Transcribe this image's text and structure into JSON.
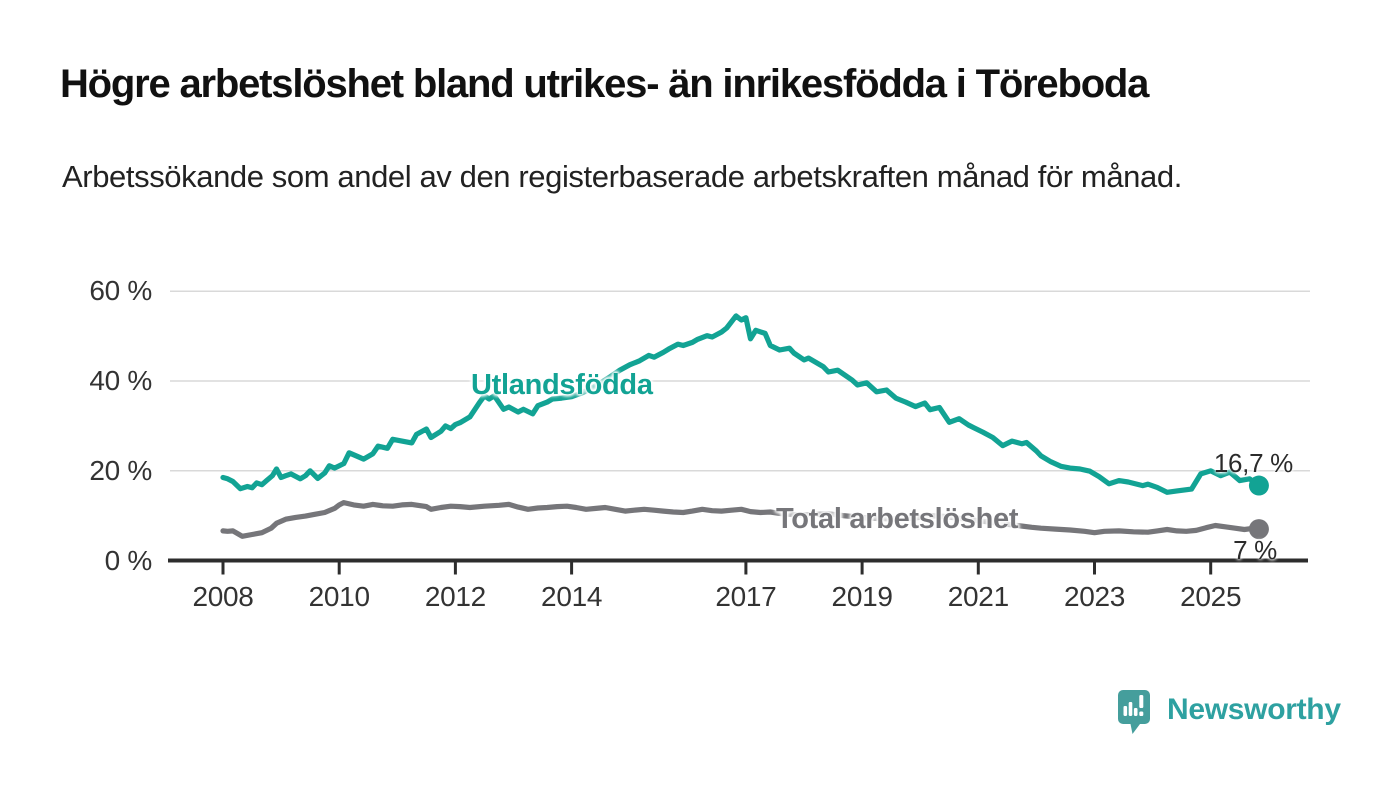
{
  "header": {
    "title": "Högre arbetslöshet bland utrikes- än inrikesfödda i Töreboda",
    "subtitle": "Arbetssökande som andel av den registerbaserade arbetskraften månad för månad."
  },
  "footer": {
    "brand": "Newsworthy",
    "logo_icon": "bar-chart-speech-bubble-icon"
  },
  "colors": {
    "teal_line": "#12a394",
    "gray_line": "#76767a",
    "axis": "#2d2d2d",
    "grid": "#d9d9d9",
    "tick_text": "#333333",
    "logo_teal": "#459e9c"
  },
  "chart_data": {
    "type": "line",
    "title": "Högre arbetslöshet bland utrikes- än inrikesfödda i Töreboda",
    "subtitle": "Arbetssökande som andel av den registerbaserade arbetskraften månad för månad.",
    "xlabel": "",
    "ylabel": "",
    "legend_position": "inline-labels-on-lines",
    "grid": "horizontal",
    "x_axis": {
      "domain": [
        2008,
        2025.83
      ],
      "ticks": [
        2008,
        2010,
        2012,
        2014,
        2017,
        2019,
        2021,
        2023,
        2025
      ],
      "tick_labels": [
        "2008",
        "2010",
        "2012",
        "2014",
        "2017",
        "2019",
        "2021",
        "2023",
        "2025"
      ]
    },
    "y_axis": {
      "lim": [
        0,
        62
      ],
      "ticks": [
        0,
        20,
        40,
        60
      ],
      "tick_labels": [
        "0 %",
        "20 %",
        "40 %",
        "60 %"
      ]
    },
    "series": [
      {
        "name": "Utlandsfödda",
        "color": "#12a394",
        "end_label": "16,7 %",
        "end_value": 16.7,
        "points": [
          [
            2008.0,
            18.5
          ],
          [
            2008.08,
            18.2
          ],
          [
            2008.17,
            17.6
          ],
          [
            2008.3,
            16.0
          ],
          [
            2008.42,
            16.5
          ],
          [
            2008.5,
            16.2
          ],
          [
            2008.58,
            17.3
          ],
          [
            2008.67,
            16.9
          ],
          [
            2008.75,
            17.8
          ],
          [
            2008.85,
            18.9
          ],
          [
            2008.92,
            20.4
          ],
          [
            2009.0,
            18.5
          ],
          [
            2009.08,
            18.9
          ],
          [
            2009.17,
            19.3
          ],
          [
            2009.33,
            18.2
          ],
          [
            2009.42,
            18.9
          ],
          [
            2009.5,
            20.0
          ],
          [
            2009.63,
            18.3
          ],
          [
            2009.75,
            19.5
          ],
          [
            2009.83,
            21.1
          ],
          [
            2009.92,
            20.6
          ],
          [
            2010.08,
            21.6
          ],
          [
            2010.17,
            24.0
          ],
          [
            2010.33,
            23.1
          ],
          [
            2010.42,
            22.6
          ],
          [
            2010.58,
            23.8
          ],
          [
            2010.67,
            25.5
          ],
          [
            2010.83,
            25.0
          ],
          [
            2010.92,
            27.0
          ],
          [
            2011.08,
            26.6
          ],
          [
            2011.25,
            26.2
          ],
          [
            2011.33,
            28.1
          ],
          [
            2011.5,
            29.3
          ],
          [
            2011.58,
            27.4
          ],
          [
            2011.75,
            28.8
          ],
          [
            2011.83,
            30.0
          ],
          [
            2011.92,
            29.4
          ],
          [
            2012.0,
            30.3
          ],
          [
            2012.08,
            30.7
          ],
          [
            2012.25,
            32.0
          ],
          [
            2012.42,
            35.3
          ],
          [
            2012.5,
            36.7
          ],
          [
            2012.58,
            36.0
          ],
          [
            2012.67,
            36.7
          ],
          [
            2012.83,
            33.7
          ],
          [
            2012.92,
            34.2
          ],
          [
            2013.08,
            33.1
          ],
          [
            2013.17,
            33.7
          ],
          [
            2013.33,
            32.7
          ],
          [
            2013.42,
            34.5
          ],
          [
            2013.58,
            35.3
          ],
          [
            2013.67,
            36.0
          ],
          [
            2013.83,
            36.2
          ],
          [
            2014.0,
            36.5
          ],
          [
            2014.17,
            37.3
          ],
          [
            2014.33,
            38.3
          ],
          [
            2014.5,
            39.6
          ],
          [
            2014.67,
            41.0
          ],
          [
            2014.83,
            42.4
          ],
          [
            2015.0,
            43.6
          ],
          [
            2015.17,
            44.5
          ],
          [
            2015.33,
            45.7
          ],
          [
            2015.42,
            45.3
          ],
          [
            2015.58,
            46.4
          ],
          [
            2015.67,
            47.1
          ],
          [
            2015.83,
            48.2
          ],
          [
            2015.92,
            47.9
          ],
          [
            2016.08,
            48.6
          ],
          [
            2016.17,
            49.3
          ],
          [
            2016.33,
            50.1
          ],
          [
            2016.42,
            49.8
          ],
          [
            2016.58,
            50.9
          ],
          [
            2016.67,
            51.8
          ],
          [
            2016.83,
            54.5
          ],
          [
            2016.92,
            53.6
          ],
          [
            2017.0,
            54.1
          ],
          [
            2017.08,
            49.4
          ],
          [
            2017.17,
            51.3
          ],
          [
            2017.33,
            50.6
          ],
          [
            2017.42,
            47.9
          ],
          [
            2017.58,
            46.9
          ],
          [
            2017.75,
            47.3
          ],
          [
            2017.83,
            46.2
          ],
          [
            2018.0,
            44.7
          ],
          [
            2018.08,
            45.1
          ],
          [
            2018.33,
            43.2
          ],
          [
            2018.42,
            42.0
          ],
          [
            2018.58,
            42.4
          ],
          [
            2018.83,
            40.2
          ],
          [
            2018.92,
            39.1
          ],
          [
            2019.08,
            39.6
          ],
          [
            2019.25,
            37.6
          ],
          [
            2019.42,
            38.0
          ],
          [
            2019.58,
            36.2
          ],
          [
            2019.75,
            35.3
          ],
          [
            2019.92,
            34.3
          ],
          [
            2020.08,
            35.1
          ],
          [
            2020.17,
            33.6
          ],
          [
            2020.33,
            34.1
          ],
          [
            2020.5,
            30.8
          ],
          [
            2020.67,
            31.6
          ],
          [
            2020.83,
            30.2
          ],
          [
            2020.92,
            29.6
          ],
          [
            2021.08,
            28.6
          ],
          [
            2021.25,
            27.4
          ],
          [
            2021.42,
            25.6
          ],
          [
            2021.58,
            26.6
          ],
          [
            2021.75,
            26.0
          ],
          [
            2021.83,
            26.3
          ],
          [
            2022.0,
            24.4
          ],
          [
            2022.08,
            23.3
          ],
          [
            2022.25,
            22.0
          ],
          [
            2022.42,
            21.0
          ],
          [
            2022.58,
            20.6
          ],
          [
            2022.75,
            20.4
          ],
          [
            2022.92,
            19.9
          ],
          [
            2023.08,
            18.7
          ],
          [
            2023.25,
            17.1
          ],
          [
            2023.42,
            17.8
          ],
          [
            2023.58,
            17.5
          ],
          [
            2023.83,
            16.7
          ],
          [
            2023.92,
            17.0
          ],
          [
            2024.08,
            16.3
          ],
          [
            2024.25,
            15.2
          ],
          [
            2024.42,
            15.5
          ],
          [
            2024.67,
            15.9
          ],
          [
            2024.83,
            19.3
          ],
          [
            2025.0,
            20.0
          ],
          [
            2025.17,
            18.9
          ],
          [
            2025.33,
            19.7
          ],
          [
            2025.5,
            17.8
          ],
          [
            2025.67,
            18.2
          ],
          [
            2025.83,
            16.7
          ]
        ]
      },
      {
        "name": "Total arbetslöshet",
        "color": "#76767a",
        "end_label": "7 %",
        "end_value": 7.0,
        "points": [
          [
            2008.0,
            6.6
          ],
          [
            2008.08,
            6.5
          ],
          [
            2008.17,
            6.6
          ],
          [
            2008.33,
            5.4
          ],
          [
            2008.5,
            5.8
          ],
          [
            2008.67,
            6.2
          ],
          [
            2008.83,
            7.2
          ],
          [
            2008.92,
            8.3
          ],
          [
            2009.08,
            9.2
          ],
          [
            2009.25,
            9.6
          ],
          [
            2009.42,
            9.9
          ],
          [
            2009.58,
            10.3
          ],
          [
            2009.75,
            10.7
          ],
          [
            2009.92,
            11.6
          ],
          [
            2010.0,
            12.4
          ],
          [
            2010.08,
            12.9
          ],
          [
            2010.25,
            12.4
          ],
          [
            2010.42,
            12.1
          ],
          [
            2010.58,
            12.5
          ],
          [
            2010.75,
            12.2
          ],
          [
            2010.92,
            12.1
          ],
          [
            2011.08,
            12.4
          ],
          [
            2011.25,
            12.5
          ],
          [
            2011.5,
            12.0
          ],
          [
            2011.58,
            11.4
          ],
          [
            2011.75,
            11.8
          ],
          [
            2011.92,
            12.1
          ],
          [
            2012.08,
            12.0
          ],
          [
            2012.25,
            11.8
          ],
          [
            2012.5,
            12.1
          ],
          [
            2012.75,
            12.3
          ],
          [
            2012.92,
            12.5
          ],
          [
            2013.08,
            11.9
          ],
          [
            2013.25,
            11.4
          ],
          [
            2013.42,
            11.7
          ],
          [
            2013.58,
            11.8
          ],
          [
            2013.75,
            12.0
          ],
          [
            2013.92,
            12.1
          ],
          [
            2014.08,
            11.8
          ],
          [
            2014.25,
            11.4
          ],
          [
            2014.42,
            11.6
          ],
          [
            2014.58,
            11.8
          ],
          [
            2014.75,
            11.4
          ],
          [
            2014.92,
            11.0
          ],
          [
            2015.08,
            11.2
          ],
          [
            2015.25,
            11.4
          ],
          [
            2015.42,
            11.2
          ],
          [
            2015.58,
            11.0
          ],
          [
            2015.75,
            10.8
          ],
          [
            2015.92,
            10.7
          ],
          [
            2016.08,
            11.0
          ],
          [
            2016.25,
            11.4
          ],
          [
            2016.42,
            11.1
          ],
          [
            2016.58,
            11.0
          ],
          [
            2016.75,
            11.2
          ],
          [
            2016.92,
            11.4
          ],
          [
            2017.08,
            10.9
          ],
          [
            2017.25,
            10.7
          ],
          [
            2017.42,
            10.8
          ],
          [
            2017.58,
            10.5
          ],
          [
            2017.75,
            10.3
          ],
          [
            2017.92,
            10.1
          ],
          [
            2018.17,
            10.3
          ],
          [
            2018.42,
            10.4
          ],
          [
            2018.67,
            10.0
          ],
          [
            2018.92,
            9.7
          ],
          [
            2019.17,
            9.4
          ],
          [
            2019.42,
            9.3
          ],
          [
            2019.67,
            9.2
          ],
          [
            2019.92,
            9.5
          ],
          [
            2020.17,
            10.0
          ],
          [
            2020.42,
            9.8
          ],
          [
            2020.67,
            9.4
          ],
          [
            2020.92,
            9.0
          ],
          [
            2021.17,
            8.6
          ],
          [
            2021.42,
            8.2
          ],
          [
            2021.67,
            7.8
          ],
          [
            2021.92,
            7.4
          ],
          [
            2022.08,
            7.2
          ],
          [
            2022.33,
            7.0
          ],
          [
            2022.58,
            6.8
          ],
          [
            2022.83,
            6.5
          ],
          [
            2023.0,
            6.2
          ],
          [
            2023.17,
            6.5
          ],
          [
            2023.42,
            6.6
          ],
          [
            2023.67,
            6.4
          ],
          [
            2023.92,
            6.3
          ],
          [
            2024.08,
            6.6
          ],
          [
            2024.25,
            6.9
          ],
          [
            2024.42,
            6.6
          ],
          [
            2024.58,
            6.5
          ],
          [
            2024.75,
            6.7
          ],
          [
            2024.92,
            7.3
          ],
          [
            2025.08,
            7.8
          ],
          [
            2025.25,
            7.5
          ],
          [
            2025.42,
            7.2
          ],
          [
            2025.58,
            6.9
          ],
          [
            2025.75,
            7.2
          ],
          [
            2025.83,
            7.0
          ]
        ]
      }
    ]
  }
}
